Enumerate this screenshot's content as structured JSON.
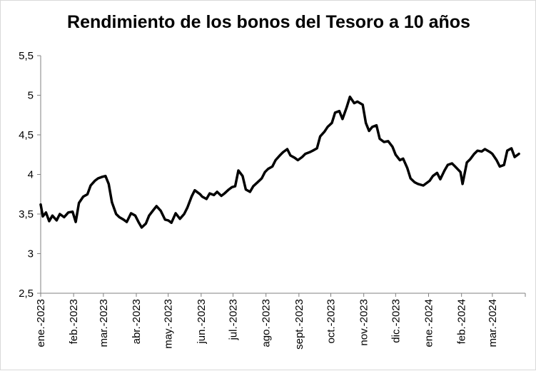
{
  "chart_data": {
    "type": "line",
    "title": "Rendimiento de los bonos del Tesoro a 10 años",
    "xlabel": "",
    "ylabel": "",
    "ylim": [
      2.5,
      5.5
    ],
    "y_ticks": [
      "2,5",
      "3",
      "3,5",
      "4",
      "4,5",
      "5",
      "5,5"
    ],
    "y_tick_values": [
      2.5,
      3,
      3.5,
      4,
      4.5,
      5,
      5.5
    ],
    "x_ticks": [
      "ene.-2023",
      "feb.-2023",
      "mar.-2023",
      "abr.-2023",
      "may.-2023",
      "jun.-2023",
      "jul.-2023",
      "ago.-2023",
      "sept.-2023",
      "oct.-2023",
      "nov.-2023",
      "dic.-2023",
      "ene.-2024",
      "feb.-2024",
      "mar.-2024"
    ],
    "grid": false,
    "legend": "none",
    "line_color": "#000000",
    "series": [
      {
        "x": [
          "2023-01-01",
          "2023-01-03",
          "2023-01-06",
          "2023-01-09",
          "2023-01-12",
          "2023-01-16",
          "2023-01-19",
          "2023-01-23",
          "2023-01-27",
          "2023-01-31",
          "2023-02-03",
          "2023-02-06",
          "2023-02-10",
          "2023-02-14",
          "2023-02-17",
          "2023-02-21",
          "2023-02-24",
          "2023-02-28",
          "2023-03-03",
          "2023-03-06",
          "2023-03-09",
          "2023-03-13",
          "2023-03-16",
          "2023-03-20",
          "2023-03-23",
          "2023-03-27",
          "2023-03-31",
          "2023-04-03",
          "2023-04-06",
          "2023-04-10",
          "2023-04-13",
          "2023-04-17",
          "2023-04-20",
          "2023-04-24",
          "2023-04-28",
          "2023-05-01",
          "2023-05-04",
          "2023-05-08",
          "2023-05-12",
          "2023-05-16",
          "2023-05-19",
          "2023-05-23",
          "2023-05-26",
          "2023-05-31",
          "2023-06-02",
          "2023-06-06",
          "2023-06-09",
          "2023-06-13",
          "2023-06-16",
          "2023-06-20",
          "2023-06-23",
          "2023-06-27",
          "2023-06-30",
          "2023-07-03",
          "2023-07-06",
          "2023-07-10",
          "2023-07-13",
          "2023-07-17",
          "2023-07-20",
          "2023-07-24",
          "2023-07-28",
          "2023-07-31",
          "2023-08-03",
          "2023-08-07",
          "2023-08-10",
          "2023-08-14",
          "2023-08-17",
          "2023-08-21",
          "2023-08-24",
          "2023-08-28",
          "2023-08-31",
          "2023-09-04",
          "2023-09-07",
          "2023-09-11",
          "2023-09-14",
          "2023-09-18",
          "2023-09-21",
          "2023-09-25",
          "2023-09-28",
          "2023-10-02",
          "2023-10-05",
          "2023-10-09",
          "2023-10-12",
          "2023-10-16",
          "2023-10-19",
          "2023-10-23",
          "2023-10-26",
          "2023-10-31",
          "2023-11-03",
          "2023-11-06",
          "2023-11-09",
          "2023-11-13",
          "2023-11-16",
          "2023-11-20",
          "2023-11-24",
          "2023-11-28",
          "2023-12-01",
          "2023-12-05",
          "2023-12-08",
          "2023-12-12",
          "2023-12-15",
          "2023-12-19",
          "2023-12-22",
          "2023-12-27",
          "2024-01-02",
          "2024-01-05",
          "2024-01-09",
          "2024-01-12",
          "2024-01-16",
          "2024-01-19",
          "2024-01-23",
          "2024-01-26",
          "2024-01-31",
          "2024-02-02",
          "2024-02-06",
          "2024-02-09",
          "2024-02-13",
          "2024-02-16",
          "2024-02-20",
          "2024-02-23",
          "2024-02-28",
          "2024-03-01",
          "2024-03-05",
          "2024-03-08",
          "2024-03-12",
          "2024-03-15",
          "2024-03-19",
          "2024-03-22",
          "2024-03-26"
        ],
        "values": [
          3.62,
          3.47,
          3.52,
          3.41,
          3.48,
          3.42,
          3.5,
          3.46,
          3.52,
          3.53,
          3.4,
          3.64,
          3.72,
          3.75,
          3.86,
          3.92,
          3.95,
          3.97,
          3.98,
          3.88,
          3.65,
          3.5,
          3.46,
          3.43,
          3.4,
          3.51,
          3.48,
          3.4,
          3.33,
          3.38,
          3.48,
          3.55,
          3.6,
          3.54,
          3.43,
          3.42,
          3.39,
          3.51,
          3.44,
          3.5,
          3.58,
          3.72,
          3.8,
          3.75,
          3.72,
          3.69,
          3.76,
          3.74,
          3.78,
          3.73,
          3.76,
          3.81,
          3.84,
          3.85,
          4.05,
          3.98,
          3.81,
          3.78,
          3.85,
          3.9,
          3.95,
          4.03,
          4.07,
          4.1,
          4.18,
          4.24,
          4.28,
          4.32,
          4.24,
          4.21,
          4.18,
          4.22,
          4.26,
          4.28,
          4.3,
          4.33,
          4.48,
          4.54,
          4.6,
          4.65,
          4.78,
          4.8,
          4.7,
          4.85,
          4.98,
          4.9,
          4.92,
          4.88,
          4.65,
          4.55,
          4.6,
          4.62,
          4.45,
          4.41,
          4.42,
          4.35,
          4.25,
          4.18,
          4.2,
          4.08,
          3.95,
          3.9,
          3.88,
          3.86,
          3.92,
          3.98,
          4.02,
          3.94,
          4.05,
          4.12,
          4.14,
          4.1,
          4.03,
          3.88,
          4.15,
          4.19,
          4.26,
          4.3,
          4.29,
          4.32,
          4.28,
          4.26,
          4.18,
          4.1,
          4.12,
          4.3,
          4.33,
          4.22,
          4.26
        ]
      }
    ]
  }
}
